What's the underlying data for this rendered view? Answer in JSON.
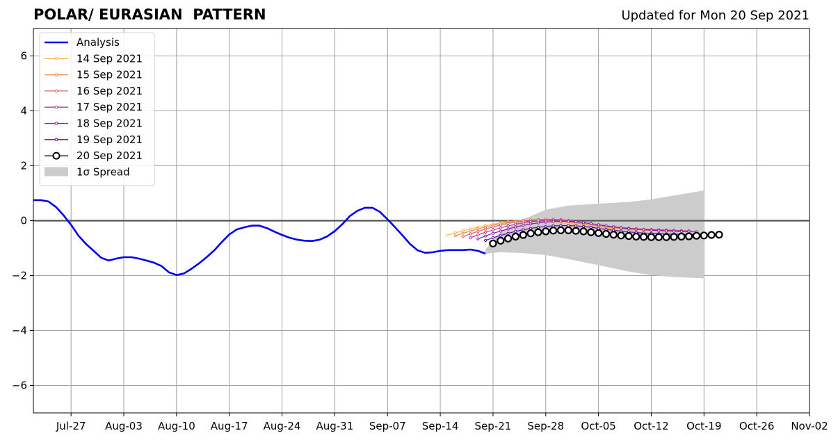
{
  "header": {
    "title": "POLAR/ EURASIAN  PATTERN",
    "updated": "Updated for Mon 20 Sep 2021"
  },
  "chart_data": {
    "type": "line",
    "x_ticks": [
      "Jul-27",
      "Aug-03",
      "Aug-10",
      "Aug-17",
      "Aug-24",
      "Aug-31",
      "Sep-07",
      "Sep-14",
      "Sep-21",
      "Sep-28",
      "Oct-05",
      "Oct-12",
      "Oct-19",
      "Oct-26",
      "Nov-02"
    ],
    "xlim": [
      "2021-07-22",
      "2021-11-02"
    ],
    "ylim": [
      -7,
      7
    ],
    "y_ticks": [
      -6,
      -4,
      -2,
      0,
      2,
      4,
      6
    ],
    "y_tick_labels": [
      "−6",
      "−4",
      "−2",
      "0",
      "2",
      "4",
      "6"
    ],
    "grid": true,
    "legend": {
      "position": "top-left",
      "entries": [
        "Analysis",
        "14 Sep 2021",
        "15 Sep 2021",
        "16 Sep 2021",
        "17 Sep 2021",
        "18 Sep 2021",
        "19 Sep 2021",
        "20 Sep 2021",
        "1σ Spread"
      ]
    },
    "analysis": {
      "name": "Analysis",
      "color": "#0000ee",
      "start": "2021-07-22",
      "values": [
        0.75,
        0.75,
        0.7,
        0.5,
        0.2,
        -0.15,
        -0.55,
        -0.85,
        -1.1,
        -1.35,
        -1.45,
        -1.38,
        -1.33,
        -1.33,
        -1.38,
        -1.45,
        -1.53,
        -1.65,
        -1.88,
        -1.98,
        -1.92,
        -1.75,
        -1.55,
        -1.33,
        -1.08,
        -0.78,
        -0.5,
        -0.32,
        -0.24,
        -0.18,
        -0.18,
        -0.27,
        -0.4,
        -0.52,
        -0.62,
        -0.69,
        -0.73,
        -0.74,
        -0.69,
        -0.57,
        -0.38,
        -0.13,
        0.17,
        0.36,
        0.47,
        0.47,
        0.32,
        0.05,
        -0.24,
        -0.54,
        -0.85,
        -1.08,
        -1.17,
        -1.15,
        -1.1,
        -1.07,
        -1.07,
        -1.07,
        -1.05,
        -1.1,
        -1.2
      ]
    },
    "forecasts": [
      {
        "name": "14 Sep 2021",
        "color": "#fdb84a",
        "start": "2021-09-15",
        "values": [
          -0.52,
          -0.44,
          -0.37,
          -0.3,
          -0.24,
          -0.18,
          -0.13,
          -0.08,
          -0.04,
          -0.01,
          0.01,
          0.02,
          0.02,
          0.0,
          -0.03,
          -0.06,
          -0.1,
          -0.14,
          -0.18,
          -0.21,
          -0.24,
          -0.27,
          -0.29,
          -0.31,
          -0.33,
          -0.34,
          -0.35,
          -0.36,
          -0.37,
          -0.38
        ]
      },
      {
        "name": "15 Sep 2021",
        "color": "#f0884b",
        "start": "2021-09-16",
        "values": [
          -0.55,
          -0.46,
          -0.38,
          -0.3,
          -0.23,
          -0.17,
          -0.11,
          -0.06,
          -0.02,
          0.01,
          0.03,
          0.04,
          0.04,
          0.03,
          0.0,
          -0.04,
          -0.08,
          -0.12,
          -0.16,
          -0.2,
          -0.23,
          -0.26,
          -0.28,
          -0.3,
          -0.32,
          -0.33,
          -0.34,
          -0.35,
          -0.36,
          -0.37
        ]
      },
      {
        "name": "16 Sep 2021",
        "color": "#dc5f6e",
        "start": "2021-09-17",
        "values": [
          -0.58,
          -0.48,
          -0.39,
          -0.31,
          -0.23,
          -0.16,
          -0.1,
          -0.05,
          -0.01,
          0.02,
          0.04,
          0.05,
          0.05,
          0.04,
          0.01,
          -0.03,
          -0.07,
          -0.11,
          -0.15,
          -0.19,
          -0.22,
          -0.25,
          -0.27,
          -0.29,
          -0.31,
          -0.32,
          -0.33,
          -0.34,
          -0.35,
          -0.36
        ]
      },
      {
        "name": "17 Sep 2021",
        "color": "#b63892",
        "start": "2021-09-18",
        "values": [
          -0.62,
          -0.52,
          -0.42,
          -0.34,
          -0.26,
          -0.19,
          -0.13,
          -0.08,
          -0.04,
          -0.01,
          0.01,
          0.02,
          0.02,
          0.0,
          -0.03,
          -0.07,
          -0.11,
          -0.15,
          -0.19,
          -0.22,
          -0.25,
          -0.28,
          -0.3,
          -0.32,
          -0.33,
          -0.34,
          -0.35,
          -0.36,
          -0.37,
          -0.37
        ]
      },
      {
        "name": "18 Sep 2021",
        "color": "#8a1aa0",
        "start": "2021-09-19",
        "values": [
          -0.66,
          -0.56,
          -0.46,
          -0.38,
          -0.3,
          -0.23,
          -0.17,
          -0.12,
          -0.08,
          -0.05,
          -0.03,
          -0.02,
          -0.02,
          -0.04,
          -0.07,
          -0.11,
          -0.15,
          -0.19,
          -0.23,
          -0.26,
          -0.29,
          -0.31,
          -0.33,
          -0.35,
          -0.36,
          -0.37,
          -0.38,
          -0.39,
          -0.4,
          -0.4
        ]
      },
      {
        "name": "19 Sep 2021",
        "color": "#560c98",
        "start": "2021-09-20",
        "values": [
          -0.72,
          -0.62,
          -0.54,
          -0.46,
          -0.39,
          -0.33,
          -0.28,
          -0.24,
          -0.21,
          -0.19,
          -0.18,
          -0.18,
          -0.19,
          -0.21,
          -0.24,
          -0.28,
          -0.32,
          -0.35,
          -0.38,
          -0.41,
          -0.43,
          -0.45,
          -0.46,
          -0.47,
          -0.48,
          -0.49,
          -0.5,
          -0.5,
          -0.51,
          -0.51
        ]
      },
      {
        "name": "20 Sep 2021",
        "color": "#000000",
        "start": "2021-09-21",
        "values": [
          -0.83,
          -0.73,
          -0.65,
          -0.58,
          -0.52,
          -0.46,
          -0.42,
          -0.39,
          -0.36,
          -0.35,
          -0.35,
          -0.37,
          -0.39,
          -0.42,
          -0.45,
          -0.48,
          -0.51,
          -0.54,
          -0.56,
          -0.58,
          -0.59,
          -0.6,
          -0.6,
          -0.6,
          -0.59,
          -0.58,
          -0.57,
          -0.55,
          -0.54,
          -0.52,
          -0.51
        ]
      }
    ],
    "spread": {
      "name": "1σ Spread",
      "color": "#cccccc",
      "dates": [
        "2021-09-20",
        "2021-09-22",
        "2021-09-25",
        "2021-09-28",
        "2021-10-01",
        "2021-10-05",
        "2021-10-09",
        "2021-10-12",
        "2021-10-15",
        "2021-10-19"
      ],
      "upper": [
        -1.05,
        -0.4,
        0.05,
        0.4,
        0.55,
        0.62,
        0.68,
        0.78,
        0.92,
        1.1
      ],
      "lower": [
        -1.2,
        -1.15,
        -1.18,
        -1.25,
        -1.4,
        -1.62,
        -1.85,
        -1.98,
        -2.05,
        -2.1
      ]
    }
  }
}
